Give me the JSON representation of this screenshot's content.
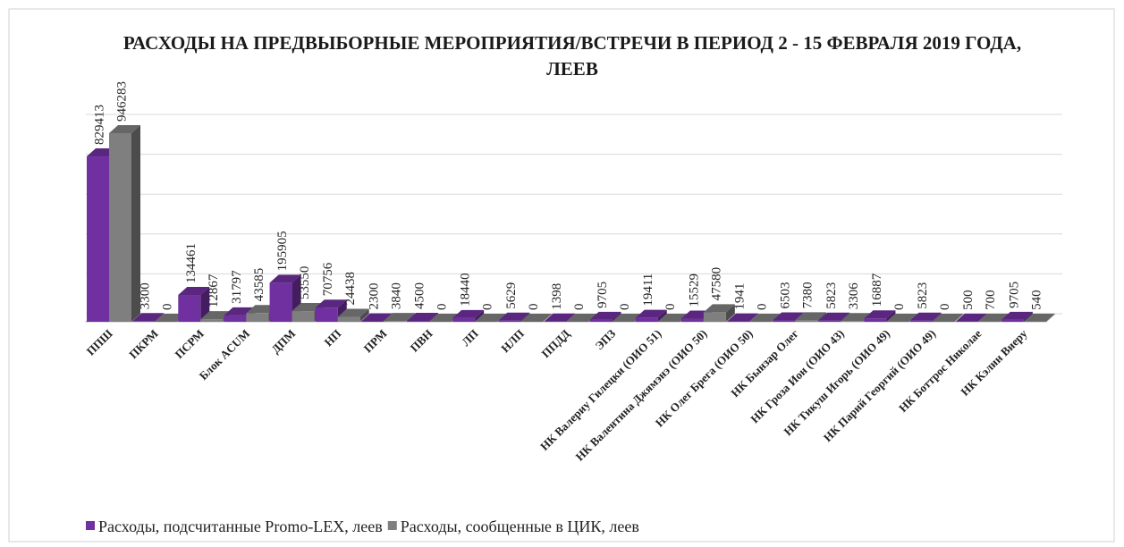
{
  "chart_data": {
    "type": "bar3d",
    "title": "РАСХОДЫ НА ПРЕДВЫБОРНЫЕ МЕРОПРИЯТИЯ/ВСТРЕЧИ В ПЕРИОД 2 - 15 ФЕВРАЛЯ 2019 ГОДА, ЛЕЕВ",
    "categories": [
      "ППШ",
      "ПКРМ",
      "ПСРМ",
      "Блок ACUM",
      "ДПМ",
      "НП",
      "ПРМ",
      "ПВН",
      "ЛП",
      "НЛП",
      "ППДД",
      "ЭПЗ",
      "НК Валериу Гилецки (ОИО 51)",
      "НК Валентина Джямэнэ (ОИО 50)",
      "НК Олег Брега (ОИО 50)",
      "НК Бынзар Олег",
      "НК Гроза Ион (ОИО 43)",
      "НК Тикуш Игорь (ОИО 49)",
      "НК Парий Георгий (ОИО 49)",
      "НК Боттрос Николае",
      "НК Кэлин Виеру"
    ],
    "series": [
      {
        "name": "Расходы, подсчитанные Promo-LEX, леев",
        "color": "#7030a0",
        "values": [
          829413,
          3300,
          134461,
          31797,
          195905,
          70756,
          2300,
          4500,
          18440,
          5629,
          1398,
          9705,
          19411,
          15529,
          1941,
          6503,
          5823,
          16887,
          5823,
          500,
          9705
        ]
      },
      {
        "name": "Расходы, сообщенные в ЦИК, леев",
        "color": "#7f7f7f",
        "values": [
          946283,
          0,
          12867,
          43585,
          53550,
          24438,
          3840,
          0,
          0,
          0,
          0,
          0,
          0,
          47580,
          0,
          7380,
          3306,
          0,
          0,
          700,
          540
        ]
      }
    ],
    "ylim": [
      0,
      1000000
    ],
    "yticks": [
      0,
      200000,
      400000,
      600000,
      800000,
      1000000
    ],
    "grid": true,
    "legend": "bottom"
  }
}
